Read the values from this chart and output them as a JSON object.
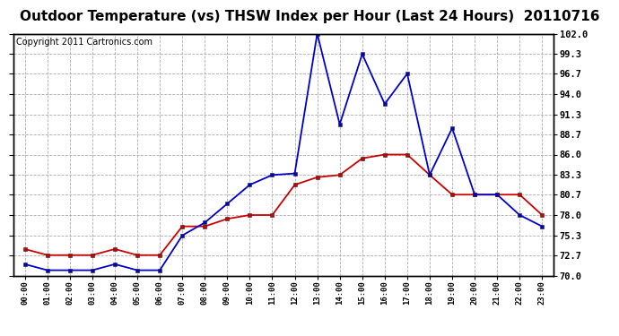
{
  "title": "Outdoor Temperature (vs) THSW Index per Hour (Last 24 Hours)  20110716",
  "copyright": "Copyright 2011 Cartronics.com",
  "hours": [
    "00:00",
    "01:00",
    "02:00",
    "03:00",
    "04:00",
    "05:00",
    "06:00",
    "07:00",
    "08:00",
    "09:00",
    "10:00",
    "11:00",
    "12:00",
    "13:00",
    "14:00",
    "15:00",
    "16:00",
    "17:00",
    "18:00",
    "19:00",
    "20:00",
    "21:00",
    "22:00",
    "23:00"
  ],
  "temp_red": [
    73.5,
    72.7,
    72.7,
    72.7,
    73.5,
    72.7,
    72.7,
    76.5,
    76.5,
    77.5,
    78.0,
    78.0,
    82.0,
    83.0,
    83.3,
    85.5,
    86.0,
    86.0,
    83.3,
    80.7,
    80.7,
    80.7,
    80.7,
    78.0
  ],
  "thsw_blue": [
    71.5,
    70.7,
    70.7,
    70.7,
    71.5,
    70.7,
    70.7,
    75.3,
    77.0,
    79.5,
    82.0,
    83.3,
    83.5,
    102.0,
    90.0,
    99.3,
    92.7,
    96.7,
    83.3,
    89.5,
    80.7,
    80.7,
    78.0,
    76.5
  ],
  "ylim": [
    70.0,
    102.0
  ],
  "yticks": [
    70.0,
    72.7,
    75.3,
    78.0,
    80.7,
    83.3,
    86.0,
    88.7,
    91.3,
    94.0,
    96.7,
    99.3,
    102.0
  ],
  "red_color": "#cc0000",
  "blue_color": "#0000cc",
  "bg_color": "#ffffff",
  "grid_color": "#aaaaaa",
  "title_fontsize": 11,
  "copyright_fontsize": 7
}
